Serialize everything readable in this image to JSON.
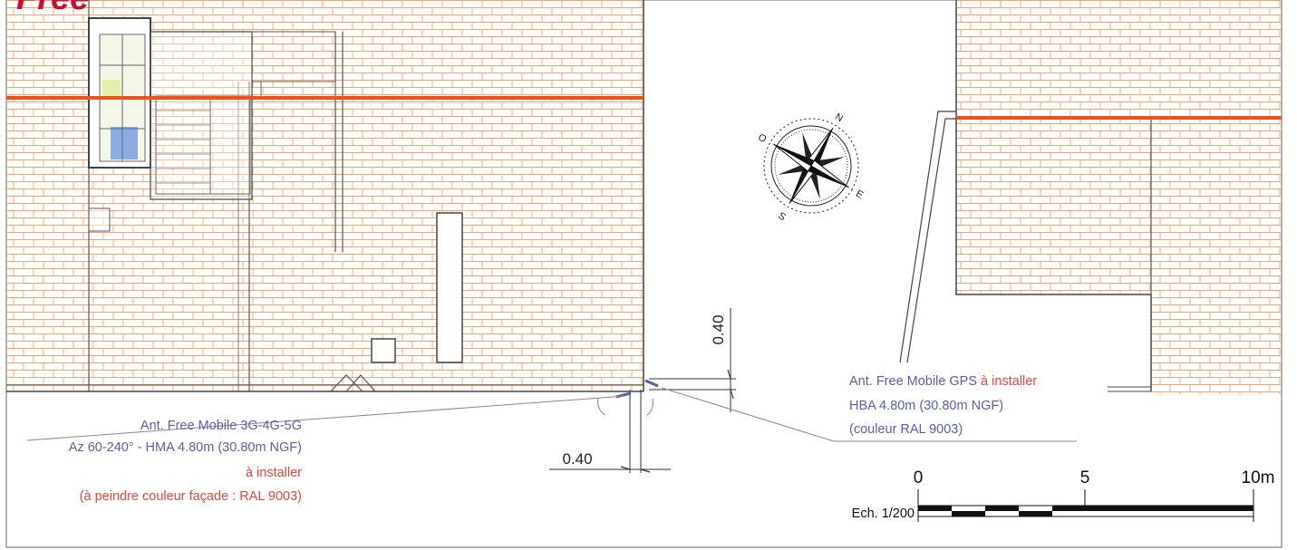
{
  "logo_text": "Free",
  "compass": {
    "n": "N",
    "e": "E",
    "s": "S",
    "o": "O"
  },
  "dimensions": {
    "vertical": "0.40",
    "horizontal": "0.40"
  },
  "antenna_3g5g": {
    "line1": "Ant. Free Mobile 3G-4G-5G",
    "line2": "Az 60-240° - HMA 4.80m (30.80m NGF)",
    "line3": "à installer",
    "line4": "(à peindre couleur façade : RAL 9003)"
  },
  "antenna_gps": {
    "line1_a": "Ant. Free Mobile GPS",
    "line1_b": " à installer",
    "line2": "HBA 4.80m (30.80m NGF)",
    "line3": "(couleur RAL 9003)"
  },
  "scale": {
    "label": "Ech. 1/200",
    "tick_0": "0",
    "tick_5": "5",
    "tick_10": "10m"
  },
  "colors": {
    "tile": "#f2a36e",
    "roof_line": "#e8541c",
    "label_blue": "#5a5fa8",
    "label_red": "#e8453c",
    "ink": "#333333"
  }
}
